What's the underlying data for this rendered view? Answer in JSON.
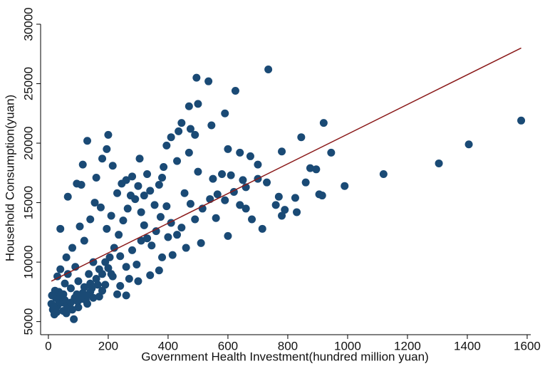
{
  "chart_data": {
    "type": "scatter",
    "x_label": "Government Health Investment(hundred million yuan)",
    "y_label": "Household Consumption(yuan)",
    "color": "#1a4a75",
    "xlim": [
      -26,
      1612
    ],
    "ylim": [
      3900,
      30000
    ],
    "xticks": [
      0,
      200,
      400,
      600,
      800,
      1000,
      1200,
      1400,
      1600
    ],
    "yticks": [
      5000,
      10000,
      15000,
      20000,
      25000,
      30000
    ],
    "x": [
      735,
      495,
      535,
      500,
      470,
      625,
      590,
      1580,
      1405,
      1305,
      1120,
      990,
      920,
      845,
      945,
      780,
      700,
      675,
      640,
      600,
      545,
      490,
      475,
      445,
      435,
      410,
      395,
      200,
      130,
      195,
      180,
      115,
      95,
      110,
      65,
      40,
      160,
      215,
      260,
      305,
      330,
      380,
      385,
      430,
      470,
      500,
      550,
      580,
      610,
      650,
      700,
      730,
      770,
      790,
      825,
      830,
      860,
      895,
      905,
      915,
      875,
      760,
      780,
      715,
      680,
      660,
      600,
      560,
      510,
      460,
      415,
      370,
      340,
      300,
      260,
      230,
      215,
      180,
      150,
      130,
      100,
      80,
      60,
      50,
      45,
      30,
      20,
      15,
      25,
      35,
      55,
      70,
      85,
      95,
      110,
      120,
      140,
      160,
      170,
      190,
      205,
      220,
      235,
      250,
      265,
      275,
      290,
      310,
      320,
      330,
      345,
      360,
      375,
      395,
      410,
      430,
      445,
      455,
      475,
      490,
      515,
      540,
      565,
      590,
      620,
      640,
      660,
      55,
      40,
      30,
      60,
      80,
      90,
      120,
      105,
      140,
      155,
      175,
      195,
      210,
      230,
      245,
      280,
      300,
      320,
      340,
      355,
      370,
      240,
      260,
      280,
      295,
      310,
      150,
      135,
      75,
      65,
      100,
      210,
      190,
      170,
      140,
      125,
      240,
      270,
      380,
      400,
      10,
      12,
      18,
      22,
      28,
      35,
      42,
      50,
      62,
      75,
      88,
      98,
      115,
      128,
      145,
      165,
      180,
      200
    ],
    "values": [
      26200,
      25500,
      25200,
      23300,
      23100,
      24400,
      22500,
      21900,
      19900,
      18300,
      17400,
      16400,
      21700,
      20500,
      19200,
      19300,
      18200,
      18900,
      19200,
      19500,
      21500,
      20700,
      21200,
      21700,
      21000,
      20500,
      19800,
      20700,
      20200,
      19500,
      18700,
      18200,
      16600,
      16500,
      15500,
      12800,
      17100,
      18100,
      16900,
      18700,
      17400,
      17100,
      18000,
      18500,
      19200,
      17600,
      17000,
      17400,
      17300,
      16900,
      17000,
      16700,
      15500,
      14400,
      15400,
      14200,
      16700,
      17800,
      15700,
      15600,
      17900,
      14800,
      13900,
      12800,
      13600,
      14500,
      12200,
      13700,
      11600,
      11200,
      10600,
      9300,
      8900,
      8400,
      7200,
      7300,
      8800,
      7600,
      7000,
      6500,
      6200,
      6000,
      5700,
      5900,
      6600,
      6300,
      5600,
      6000,
      7000,
      7500,
      6800,
      6400,
      5200,
      7300,
      6900,
      7900,
      8200,
      8600,
      9400,
      10000,
      10400,
      11200,
      12300,
      13500,
      14500,
      15600,
      15300,
      14200,
      13100,
      12000,
      11400,
      12600,
      13800,
      14700,
      13300,
      12300,
      12900,
      15800,
      14900,
      13600,
      14500,
      15300,
      15700,
      15200,
      15900,
      14800,
      16300,
      8200,
      9400,
      8800,
      10400,
      11200,
      9600,
      11800,
      13000,
      13600,
      15000,
      14600,
      12800,
      13900,
      15800,
      16600,
      17200,
      16400,
      15600,
      16000,
      14800,
      16500,
      10500,
      9600,
      11000,
      9800,
      11800,
      10000,
      9000,
      7800,
      9000,
      8400,
      9000,
      8100,
      7100,
      7500,
      6800,
      8000,
      8600,
      10400,
      12100,
      6500,
      7200,
      6200,
      7600,
      5800,
      6700,
      7100,
      7300,
      6300,
      6600,
      7000,
      6700,
      7400,
      7200,
      7800,
      8100,
      9000,
      9500
    ],
    "fit": {
      "color": "#8b1a1a",
      "x": [
        10,
        1580
      ],
      "values": [
        8400,
        28000
      ]
    }
  }
}
